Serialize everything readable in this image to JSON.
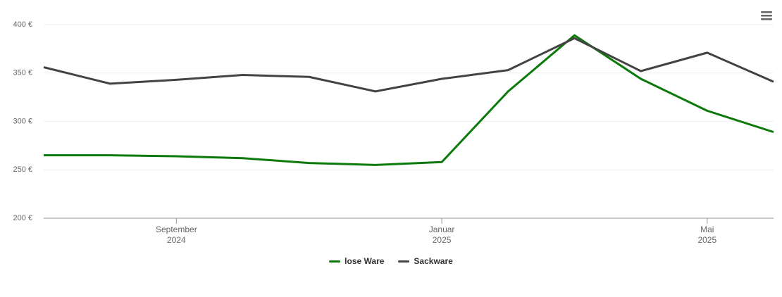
{
  "chart_data": {
    "type": "line",
    "x": [
      "2024-07",
      "2024-08",
      "2024-09",
      "2024-10",
      "2024-11",
      "2024-12",
      "2025-01",
      "2025-02",
      "2025-03",
      "2025-04",
      "2025-05",
      "2025-06"
    ],
    "series": [
      {
        "name": "lose Ware",
        "color": "#0b7a0b",
        "values": [
          265,
          265,
          264,
          262,
          257,
          255,
          258,
          331,
          389,
          344,
          311,
          289
        ]
      },
      {
        "name": "Sackware",
        "color": "#434343",
        "values": [
          356,
          339,
          343,
          348,
          346,
          331,
          344,
          353,
          386,
          352,
          371,
          341
        ]
      }
    ],
    "xlim": [
      "2024-07",
      "2025-06"
    ],
    "xticks": [
      {
        "value": "2024-09",
        "label": "September\n2024"
      },
      {
        "value": "2025-01",
        "label": "Januar\n2025"
      },
      {
        "value": "2025-05",
        "label": "Mai\n2025"
      }
    ],
    "ylim": [
      200,
      400
    ],
    "yticks": [
      {
        "value": 200,
        "label": "200 €"
      },
      {
        "value": 250,
        "label": "250 €"
      },
      {
        "value": 300,
        "label": "300 €"
      },
      {
        "value": 350,
        "label": "350 €"
      },
      {
        "value": 400,
        "label": "400 €"
      }
    ],
    "grid": true,
    "legend": "bottom"
  }
}
